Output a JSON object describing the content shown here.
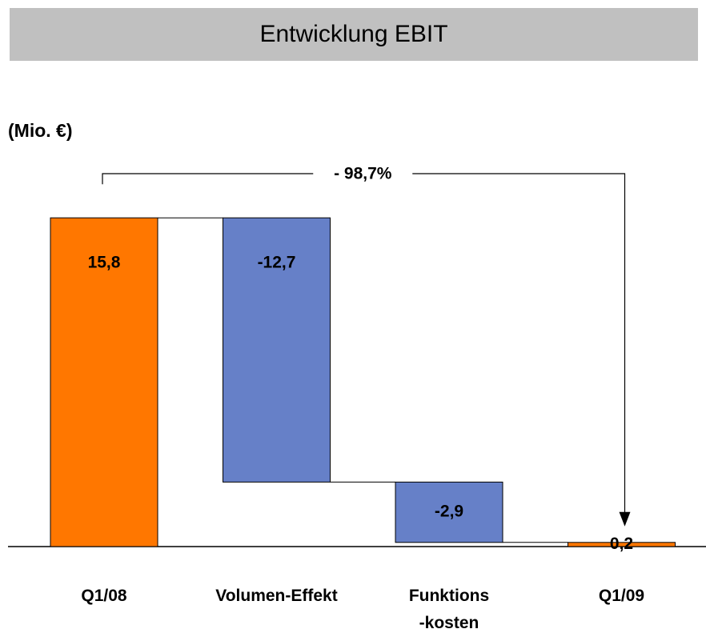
{
  "chart_data": {
    "type": "waterfall",
    "title": "Entwicklung EBIT",
    "y_label": "(Mio. €)",
    "annotation": "- 98,7%",
    "categories": [
      "Q1/08",
      "Volumen-Effekt",
      "Funktions\n-kosten",
      "Q1/09"
    ],
    "values": [
      15.8,
      -12.7,
      -2.9,
      0.2
    ],
    "value_labels": [
      "15,8",
      "-12,7",
      "-2,9",
      "0,2"
    ],
    "totals": [
      true,
      false,
      false,
      true
    ],
    "total_color": "#ff7700",
    "delta_color": "#6680c8"
  }
}
